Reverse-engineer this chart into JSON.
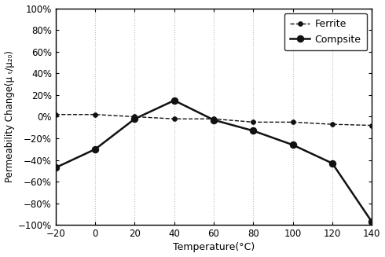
{
  "ferrite_x": [
    -20,
    0,
    20,
    40,
    60,
    80,
    100,
    120,
    140
  ],
  "ferrite_y": [
    0.02,
    0.02,
    0.0,
    -0.02,
    -0.02,
    -0.05,
    -0.05,
    -0.07,
    -0.08
  ],
  "composite_x": [
    -20,
    0,
    20,
    40,
    60,
    80,
    100,
    120,
    140
  ],
  "composite_y": [
    -0.47,
    -0.3,
    -0.02,
    0.15,
    -0.03,
    -0.13,
    -0.26,
    -0.43,
    -0.97
  ],
  "xlabel": "Temperature(°C)",
  "ylabel": "Permeability Change(μ ₜ/μ₂₀)",
  "xlim": [
    -20,
    140
  ],
  "ylim": [
    -1.0,
    1.0
  ],
  "xticks": [
    -20,
    0,
    20,
    40,
    60,
    80,
    100,
    120,
    140
  ],
  "yticks": [
    -1.0,
    -0.8,
    -0.6,
    -0.4,
    -0.2,
    0.0,
    0.2,
    0.4,
    0.6,
    0.8,
    1.0
  ],
  "ferrite_label": "Ferrite",
  "composite_label": "Compsite",
  "line_color": "#111111",
  "grid_color": "#bbbbbb",
  "figsize": [
    4.9,
    3.27
  ],
  "dpi": 100
}
